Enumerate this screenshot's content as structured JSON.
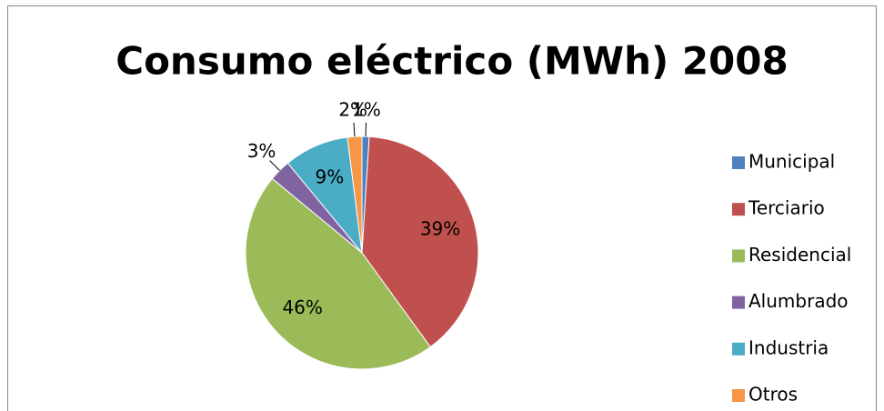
{
  "chart_data": {
    "type": "pie",
    "title": "Consumo eléctrico (MWh) 2008",
    "categories": [
      "Municipal",
      "Terciario",
      "Residencial",
      "Alumbrado",
      "Industria",
      "Otros"
    ],
    "values": [
      1,
      39,
      46,
      3,
      9,
      2
    ],
    "value_labels": [
      "1%",
      "39%",
      "46%",
      "3%",
      "9%",
      "2%"
    ],
    "colors": [
      "#4f81bd",
      "#c0504d",
      "#9bbb59",
      "#8064a2",
      "#4bacc6",
      "#f79646"
    ],
    "legend": "right"
  }
}
